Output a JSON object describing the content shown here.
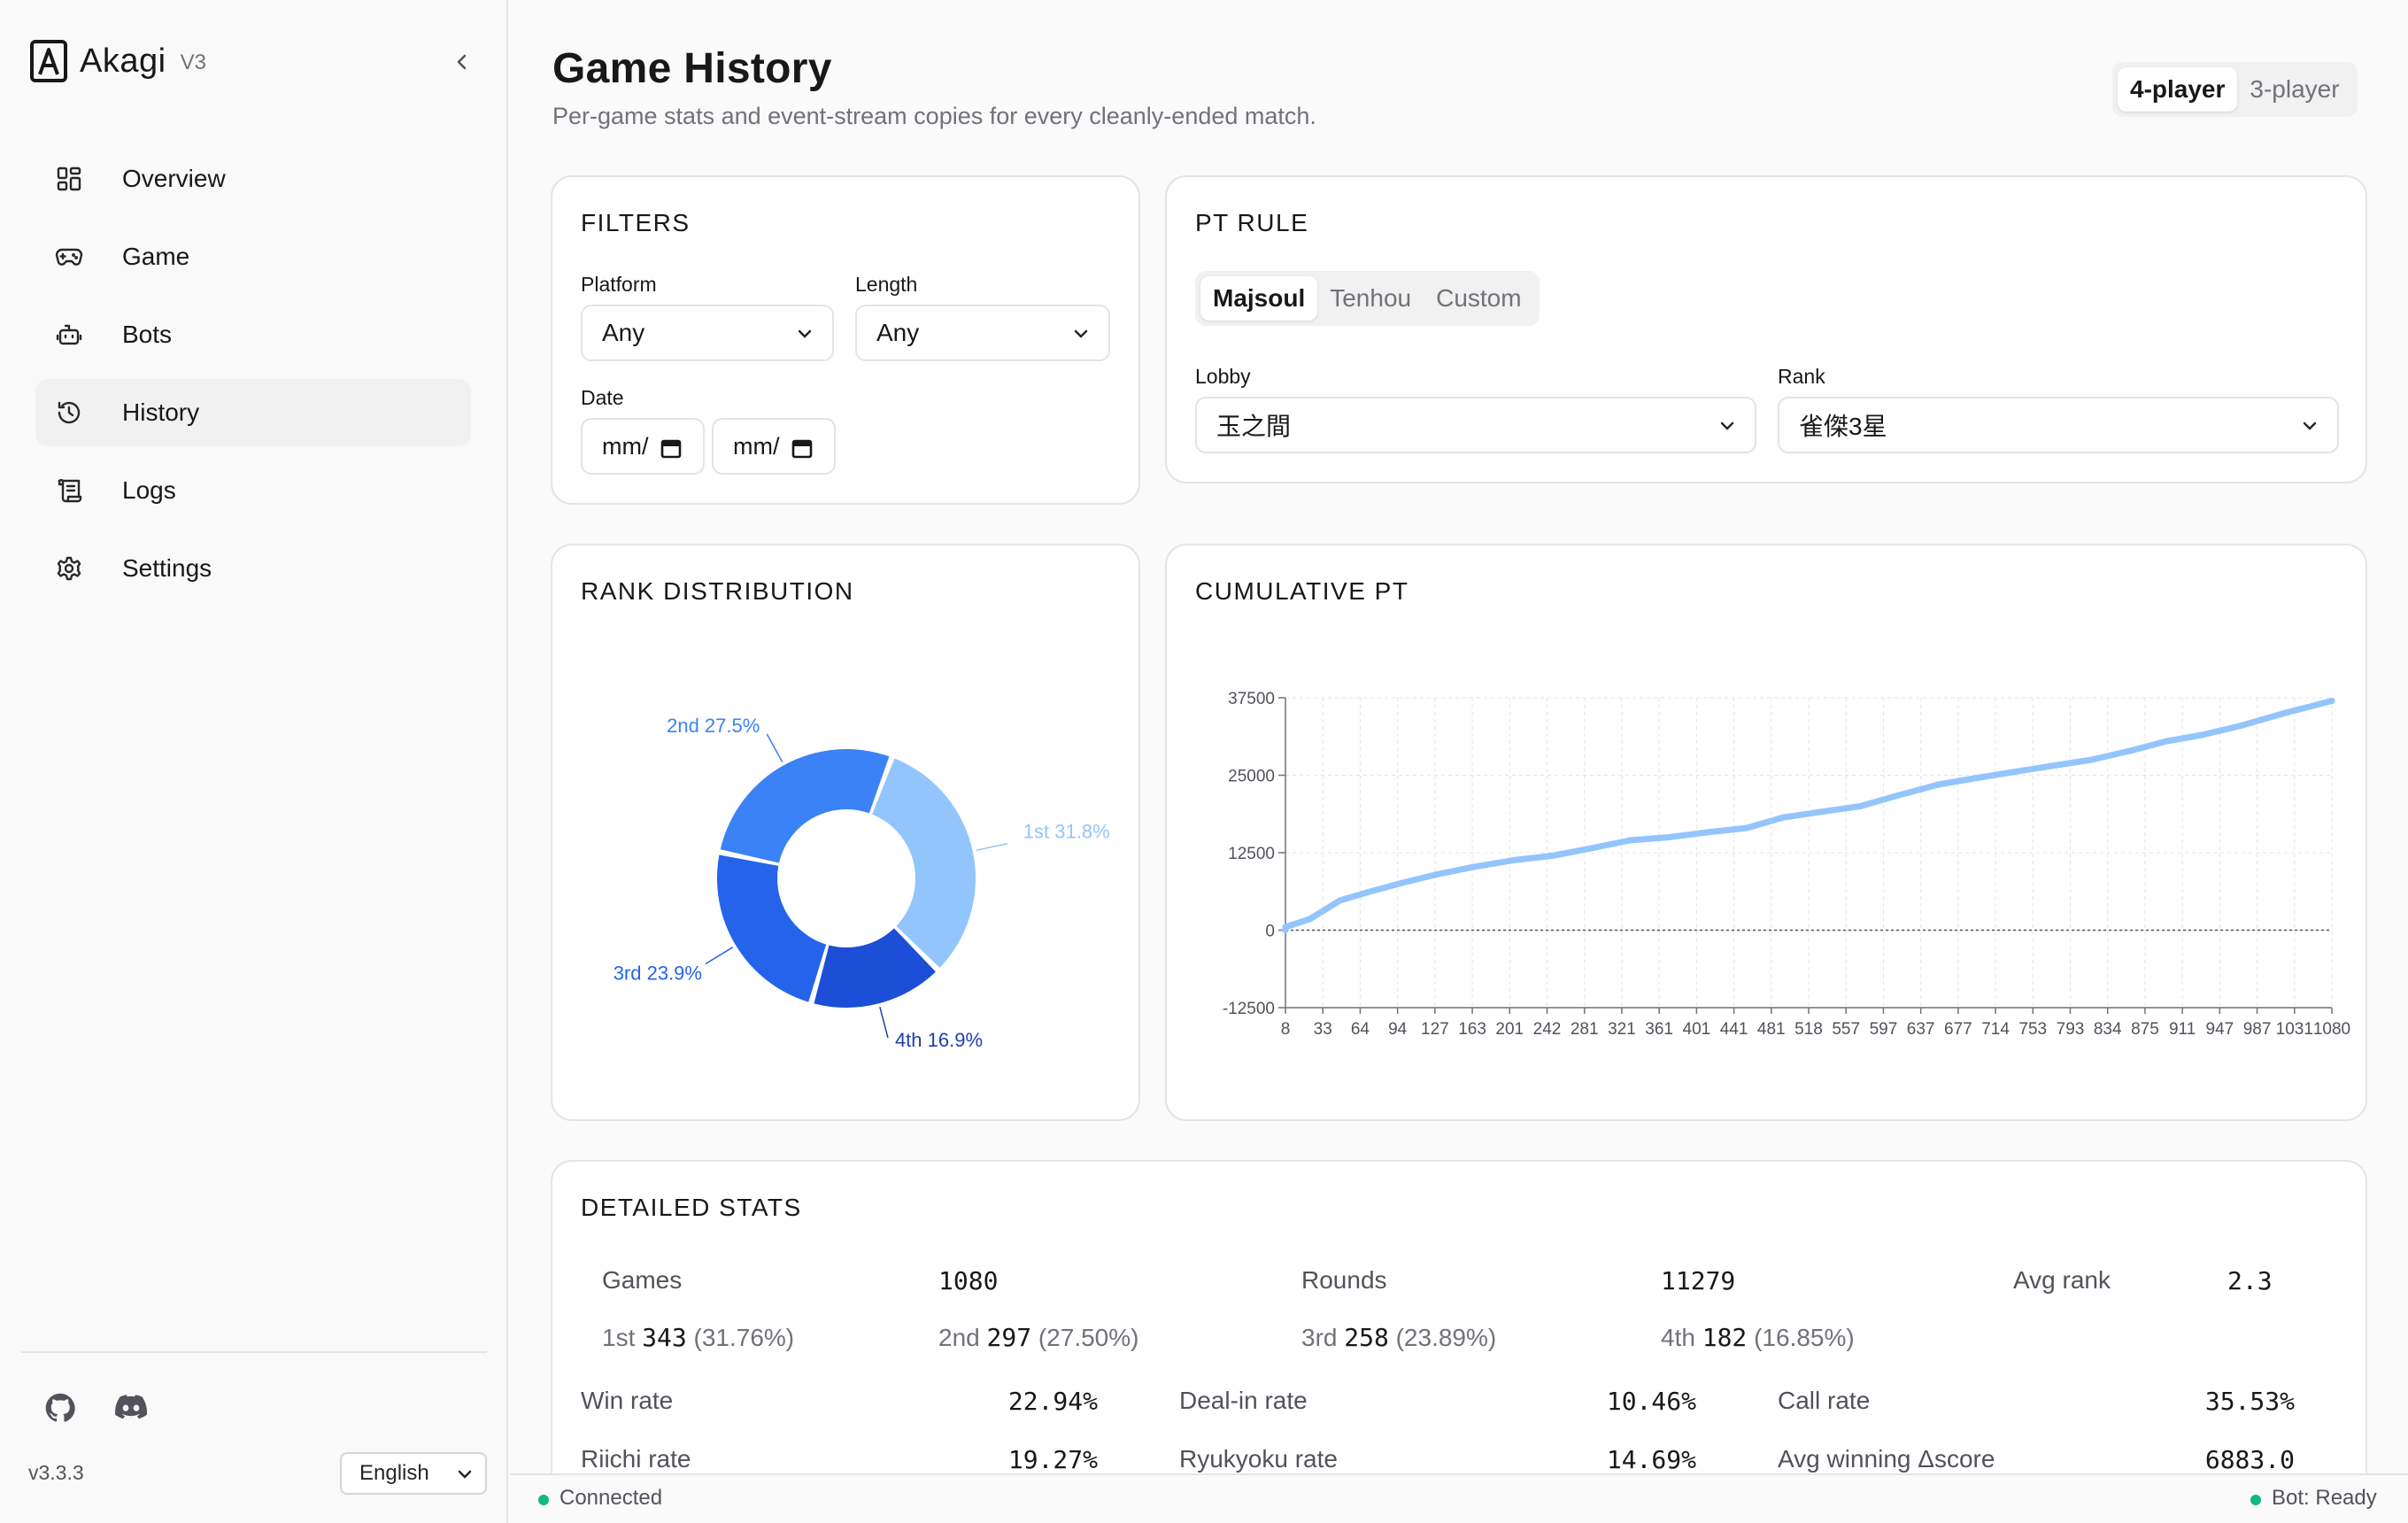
{
  "app": {
    "name": "Akagi",
    "version_badge": "V3",
    "version": "v3.3.3",
    "language": "English"
  },
  "nav": [
    {
      "label": "Overview",
      "icon": "dashboard-icon",
      "active": false
    },
    {
      "label": "Game",
      "icon": "gamepad-icon",
      "active": false
    },
    {
      "label": "Bots",
      "icon": "bot-icon",
      "active": false
    },
    {
      "label": "History",
      "icon": "history-icon",
      "active": true
    },
    {
      "label": "Logs",
      "icon": "scroll-icon",
      "active": false
    },
    {
      "label": "Settings",
      "icon": "gear-icon",
      "active": false
    }
  ],
  "page": {
    "title": "Game History",
    "subtitle": "Per-game stats and event-stream copies for every cleanly-ended match.",
    "player_modes": [
      "4-player",
      "3-player"
    ],
    "player_mode_selected": "4-player"
  },
  "filters": {
    "title": "FILTERS",
    "platform_label": "Platform",
    "platform_value": "Any",
    "length_label": "Length",
    "length_value": "Any",
    "date_label": "Date",
    "date_from_placeholder": "mm/",
    "date_to_placeholder": "mm/"
  },
  "pt_rule": {
    "title": "PT RULE",
    "tabs": [
      "Majsoul",
      "Tenhou",
      "Custom"
    ],
    "tab_selected": "Majsoul",
    "lobby_label": "Lobby",
    "lobby_value": "玉之間",
    "rank_label": "Rank",
    "rank_value": "雀傑3星"
  },
  "rank_distribution": {
    "title": "RANK DISTRIBUTION",
    "slices": [
      {
        "label": "1st 31.8%",
        "value": 31.8,
        "color": "#93c5fd",
        "label_color": "#93c5fd"
      },
      {
        "label": "4th 16.9%",
        "value": 16.9,
        "color": "#1d4ed8",
        "label_color": "#1e40af"
      },
      {
        "label": "3rd 23.9%",
        "value": 23.9,
        "color": "#2563eb",
        "label_color": "#2563eb"
      },
      {
        "label": "2nd 27.5%",
        "value": 27.5,
        "color": "#3b82f6",
        "label_color": "#3b82f6"
      }
    ]
  },
  "cumulative_pt": {
    "title": "CUMULATIVE PT",
    "chart_data": {
      "type": "line",
      "title": "CUMULATIVE PT",
      "xlabel": "",
      "ylabel": "",
      "ylim": [
        -12500,
        37500
      ],
      "y_ticks": [
        "37500",
        "25000",
        "12500",
        "0",
        "-12500"
      ],
      "x_ticks": [
        "8",
        "33",
        "64",
        "94",
        "127",
        "163",
        "201",
        "242",
        "281",
        "321",
        "361",
        "401",
        "441",
        "481",
        "518",
        "557",
        "597",
        "637",
        "677",
        "714",
        "753",
        "793",
        "834",
        "875",
        "911",
        "947",
        "987",
        "1031",
        "1080"
      ],
      "series": [
        {
          "color": "#93c5fd",
          "x": [
            1,
            8,
            33,
            64,
            94,
            127,
            163,
            201,
            242,
            281,
            321,
            361,
            401,
            441,
            481,
            518,
            557,
            597,
            637,
            677,
            714,
            753,
            793,
            834,
            875,
            911,
            947,
            987,
            1031,
            1080
          ],
          "y": [
            0,
            500,
            1800,
            4800,
            6200,
            7600,
            9000,
            10200,
            11300,
            12000,
            13200,
            14500,
            15000,
            15800,
            16500,
            18200,
            19100,
            20000,
            21800,
            23500,
            24500,
            25500,
            26500,
            27500,
            29000,
            30500,
            31500,
            33000,
            35000,
            37000
          ]
        }
      ]
    }
  },
  "detailed_stats": {
    "title": "DETAILED STATS",
    "top": [
      {
        "label": "Games",
        "value": "1080"
      },
      {
        "label": "Rounds",
        "value": "11279"
      },
      {
        "label": "Avg rank",
        "value": "2.3"
      }
    ],
    "ranks": [
      {
        "prefix": "1st",
        "count": "343",
        "pct": "(31.76%)"
      },
      {
        "prefix": "2nd",
        "count": "297",
        "pct": "(27.50%)"
      },
      {
        "prefix": "3rd",
        "count": "258",
        "pct": "(23.89%)"
      },
      {
        "prefix": "4th",
        "count": "182",
        "pct": "(16.85%)"
      }
    ],
    "rates": [
      {
        "label": "Win rate",
        "value": "22.94%"
      },
      {
        "label": "Deal-in rate",
        "value": "10.46%"
      },
      {
        "label": "Call rate",
        "value": "35.53%"
      },
      {
        "label": "Riichi rate",
        "value": "19.27%"
      },
      {
        "label": "Ryukyoku rate",
        "value": "14.69%"
      },
      {
        "label": "Avg winning Δscore",
        "value": "6883.0"
      }
    ]
  },
  "status": {
    "left": "Connected",
    "right": "Bot: Ready",
    "color": "#10b981"
  }
}
